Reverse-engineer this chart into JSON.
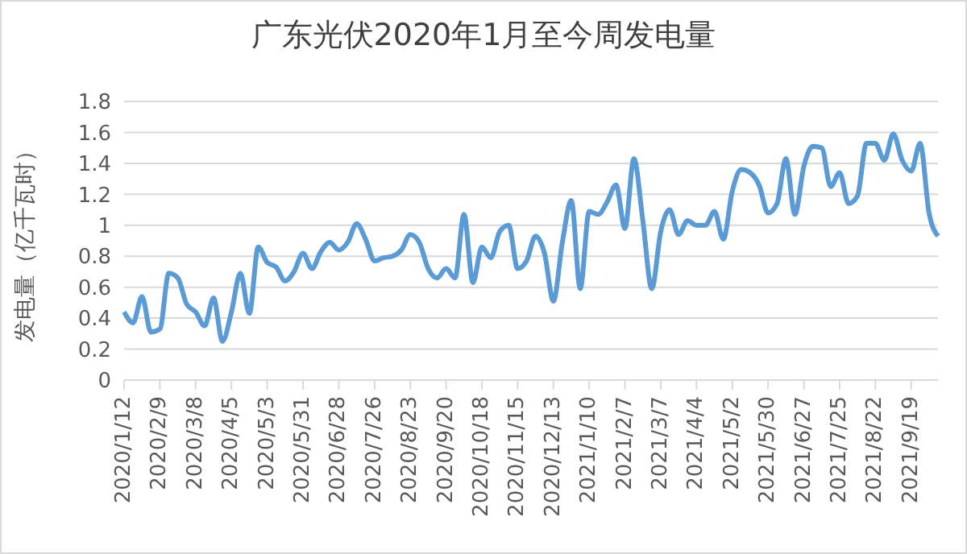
{
  "chart_data": {
    "type": "line",
    "title": "广东光伏2020年1月至今周发电量",
    "ylabel": "发电量（亿千瓦时）",
    "categories": [
      "2020/1/12",
      null,
      null,
      null,
      "2020/2/9",
      null,
      null,
      null,
      "2020/3/8",
      null,
      null,
      null,
      "2020/4/5",
      null,
      null,
      null,
      "2020/5/3",
      null,
      null,
      null,
      "2020/5/31",
      null,
      null,
      null,
      "2020/6/28",
      null,
      null,
      null,
      "2020/7/26",
      null,
      null,
      null,
      "2020/8/23",
      null,
      null,
      null,
      "2020/9/20",
      null,
      null,
      null,
      "2020/10/18",
      null,
      null,
      null,
      "2020/11/15",
      null,
      null,
      null,
      "2020/12/13",
      null,
      null,
      null,
      "2021/1/10",
      null,
      null,
      null,
      "2021/2/7",
      null,
      null,
      null,
      "2021/3/7",
      null,
      null,
      null,
      "2021/4/4",
      null,
      null,
      null,
      "2021/5/2",
      null,
      null,
      null,
      "2021/5/30",
      null,
      null,
      null,
      "2021/6/27",
      null,
      null,
      null,
      "2021/7/25",
      null,
      null,
      null,
      "2021/8/22",
      null,
      null,
      null,
      "2021/9/19",
      null,
      null,
      null
    ],
    "series": [
      {
        "color": "#5b9bd5",
        "values": [
          0.44,
          0.37,
          0.54,
          0.31,
          0.33,
          0.69,
          0.66,
          0.49,
          0.44,
          0.35,
          0.53,
          0.25,
          0.44,
          0.69,
          0.43,
          0.86,
          0.76,
          0.73,
          0.64,
          0.7,
          0.82,
          0.72,
          0.83,
          0.89,
          0.84,
          0.89,
          1.01,
          0.91,
          0.77,
          0.79,
          0.8,
          0.84,
          0.94,
          0.89,
          0.72,
          0.66,
          0.72,
          0.66,
          1.07,
          0.63,
          0.86,
          0.79,
          0.96,
          1.0,
          0.72,
          0.77,
          0.93,
          0.82,
          0.51,
          0.89,
          1.16,
          0.59,
          1.09,
          1.07,
          1.15,
          1.26,
          0.98,
          1.43,
          1.03,
          0.59,
          0.96,
          1.1,
          0.94,
          1.03,
          1.0,
          1.0,
          1.09,
          0.91,
          1.22,
          1.36,
          1.34,
          1.26,
          1.08,
          1.14,
          1.43,
          1.07,
          1.38,
          1.51,
          1.5,
          1.25,
          1.34,
          1.14,
          1.19,
          1.53,
          1.53,
          1.42,
          1.59,
          1.42,
          1.35,
          1.53,
          1.08,
          0.93
        ]
      }
    ],
    "ylim": [
      0,
      1.8
    ],
    "yticks": [
      0,
      0.2,
      0.4,
      0.6,
      0.8,
      1,
      1.2,
      1.4,
      1.6,
      1.8
    ],
    "grid": "y",
    "legend": false
  }
}
